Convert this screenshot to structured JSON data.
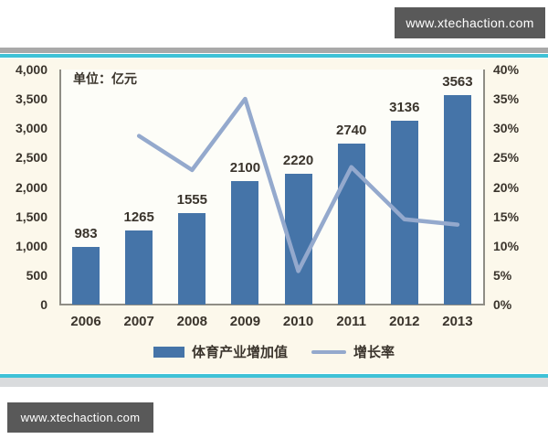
{
  "watermark": {
    "url_text": "www.xtechaction.com"
  },
  "colors": {
    "bar": "#4574a8",
    "line": "#94a9cd",
    "teal": "#3fc2d6",
    "chart-bg": "#fcf8eb",
    "plot-bg": "#fdfdf8",
    "text": "#3a342c",
    "wm-bg": "#595959",
    "top-strip": "#a9a9a9",
    "bottom-strip": "#d9dbdd",
    "axis": "#8f8d85"
  },
  "chart_data": {
    "type": "bar+line combo",
    "unit_label": "单位：亿元",
    "categories": [
      "2006",
      "2007",
      "2008",
      "2009",
      "2010",
      "2011",
      "2012",
      "2013"
    ],
    "series": [
      {
        "name": "体育产业增加值",
        "type": "bar",
        "axis": "left",
        "values": [
          983,
          1265,
          1555,
          2100,
          2220,
          2740,
          3136,
          3563
        ],
        "data_labels": [
          "983",
          "1265",
          "1555",
          "2100",
          "2220",
          "2740",
          "3136",
          "3563"
        ]
      },
      {
        "name": "增长率",
        "type": "line",
        "axis": "right",
        "values": [
          null,
          28.7,
          22.9,
          35.0,
          5.7,
          23.4,
          14.5,
          13.6
        ]
      }
    ],
    "left_axis": {
      "min": 0,
      "max": 4000,
      "ticks": [
        "4,000",
        "3,500",
        "3,000",
        "2,500",
        "2,000",
        "1,500",
        "1,000",
        "500",
        "0"
      ]
    },
    "right_axis": {
      "min": 0,
      "max": 40,
      "ticks": [
        "40%",
        "35%",
        "30%",
        "25%",
        "20%",
        "15%",
        "10%",
        "5%",
        "0%"
      ]
    },
    "legend": [
      {
        "label": "体育产业增加值",
        "marker": "bar"
      },
      {
        "label": "增长率",
        "marker": "line"
      }
    ],
    "grid": false,
    "legend_position": "bottom-center"
  }
}
